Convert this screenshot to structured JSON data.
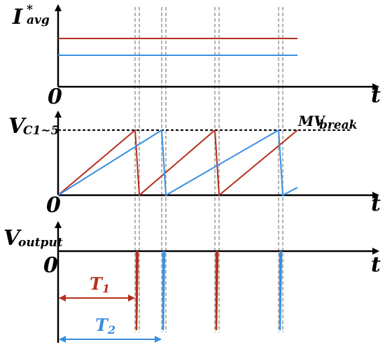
{
  "colors": {
    "series1": "#b5301d",
    "series2": "#3a8fe0",
    "guide": "#999999",
    "axis": "#000000"
  },
  "labels": {
    "iavg_main": "I",
    "iavg_star": "*",
    "iavg_sub": "avg",
    "vc_main": "V",
    "vc_sub": "C1~5",
    "vout_main": "V",
    "vout_sub": "output",
    "mv_main": "MV",
    "mv_sub": "break",
    "zero_1": "0",
    "zero_2": "0",
    "zero_3": "0",
    "t_1": "t",
    "t_2": "t",
    "t_3": "t",
    "T1_main": "T",
    "T1_sub": "1",
    "T2_main": "T",
    "T2_sub": "2"
  }
}
